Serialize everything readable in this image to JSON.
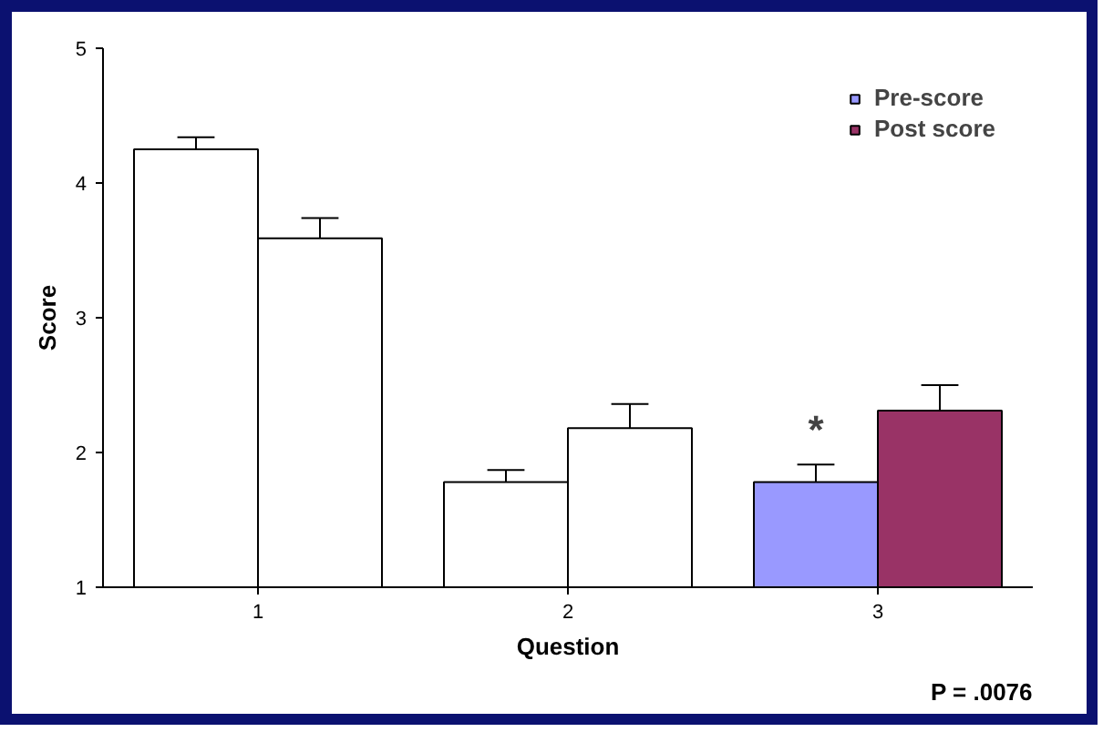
{
  "chart_data": {
    "type": "bar",
    "xlabel": "Question",
    "ylabel": "Score",
    "categories": [
      "1",
      "2",
      "3"
    ],
    "series": [
      {
        "name": "Pre-score",
        "color": "#9999ff",
        "colors": [
          "#ffffff",
          "#ffffff",
          "#9999ff"
        ],
        "values": [
          4.25,
          1.78,
          1.78
        ],
        "errors": [
          [
            4.25,
            4.34
          ],
          [
            1.78,
            1.87
          ],
          [
            1.78,
            1.91
          ]
        ]
      },
      {
        "name": "Post score",
        "color": "#993366",
        "colors": [
          "#ffffff",
          "#ffffff",
          "#993366"
        ],
        "values": [
          3.59,
          2.18,
          2.31
        ],
        "errors": [
          [
            3.59,
            3.74
          ],
          [
            2.18,
            2.36
          ],
          [
            2.31,
            2.5
          ]
        ]
      }
    ],
    "ylim": [
      1,
      5
    ],
    "yticks": [
      1,
      2,
      3,
      4,
      5
    ],
    "grid": false,
    "legend": "top right",
    "annotations": [
      {
        "text": "*",
        "x": "3",
        "y": 2.0
      },
      "P = .0076"
    ]
  }
}
